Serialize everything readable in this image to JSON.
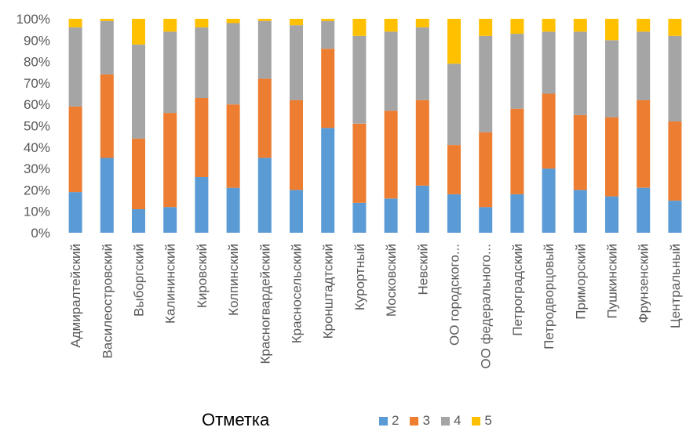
{
  "chart_data": {
    "type": "bar",
    "stacked": true,
    "percent": true,
    "categories": [
      "Адмиралтейский",
      "Василеостровский",
      "Выборгский",
      "Калининский",
      "Кировский",
      "Колпинский",
      "Красногвардейский",
      "Красносельский",
      "Кронштадтский",
      "Курортный",
      "Московский",
      "Невский",
      "ОО городского...",
      "ОО федерального...",
      "Петроградский",
      "Петродворцовый",
      "Приморский",
      "Пушкинский",
      "Фрунзенский",
      "Центральный"
    ],
    "series": [
      {
        "name": "2",
        "color": "#5B9BD5",
        "values": [
          19,
          35,
          11,
          12,
          26,
          21,
          35,
          20,
          49,
          14,
          16,
          22,
          18,
          12,
          18,
          30,
          20,
          17,
          21,
          15
        ]
      },
      {
        "name": "3",
        "color": "#ED7D31",
        "values": [
          40,
          39,
          33,
          44,
          37,
          39,
          37,
          42,
          37,
          37,
          41,
          40,
          23,
          35,
          40,
          35,
          35,
          37,
          41,
          37
        ]
      },
      {
        "name": "4",
        "color": "#A5A5A5",
        "values": [
          37,
          25,
          44,
          38,
          33,
          38,
          27,
          35,
          13,
          41,
          37,
          34,
          38,
          45,
          35,
          29,
          39,
          36,
          32,
          40
        ]
      },
      {
        "name": "5",
        "color": "#FFC000",
        "values": [
          4,
          1,
          12,
          6,
          4,
          2,
          1,
          3,
          1,
          8,
          6,
          4,
          21,
          8,
          7,
          6,
          6,
          10,
          6,
          8
        ]
      }
    ],
    "yticks": [
      "0%",
      "10%",
      "20%",
      "30%",
      "40%",
      "50%",
      "60%",
      "70%",
      "80%",
      "90%",
      "100%"
    ],
    "ylim": [
      0,
      100
    ],
    "grid": false,
    "legend_position": "bottom",
    "legend_title": "Отметка"
  }
}
